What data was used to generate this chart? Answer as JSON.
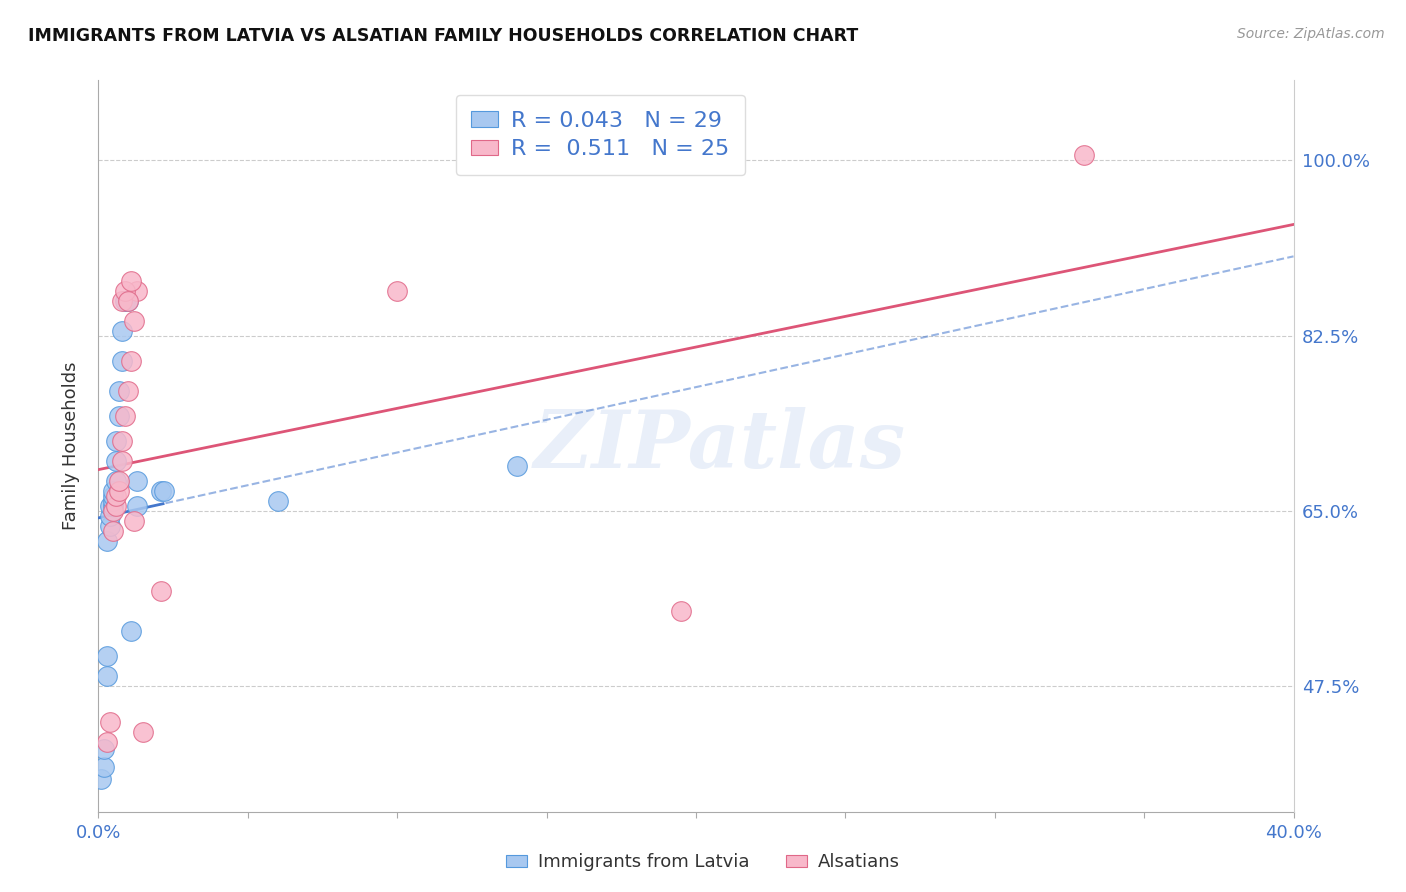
{
  "title": "IMMIGRANTS FROM LATVIA VS ALSATIAN FAMILY HOUSEHOLDS CORRELATION CHART",
  "source": "Source: ZipAtlas.com",
  "ylabel": "Family Households",
  "xlim": [
    0.0,
    0.4
  ],
  "ylim": [
    0.35,
    1.08
  ],
  "ytick_vals": [
    0.475,
    0.65,
    0.825,
    1.0
  ],
  "ytick_labels": [
    "47.5%",
    "65.0%",
    "82.5%",
    "100.0%"
  ],
  "legend_blue_r": "0.043",
  "legend_blue_n": "29",
  "legend_pink_r": "0.511",
  "legend_pink_n": "25",
  "legend_label_blue": "Immigrants from Latvia",
  "legend_label_pink": "Alsatians",
  "blue_face": "#A8C8F0",
  "blue_edge": "#5599DD",
  "pink_face": "#F8B8CA",
  "pink_edge": "#E06888",
  "blue_line": "#4477CC",
  "pink_line": "#DD5577",
  "watermark": "ZIPatlas",
  "blue_x": [
    0.001,
    0.002,
    0.002,
    0.003,
    0.003,
    0.003,
    0.004,
    0.004,
    0.004,
    0.005,
    0.005,
    0.005,
    0.005,
    0.006,
    0.006,
    0.006,
    0.007,
    0.007,
    0.008,
    0.008,
    0.009,
    0.01,
    0.011,
    0.013,
    0.021,
    0.013,
    0.022,
    0.06,
    0.14
  ],
  "blue_y": [
    0.383,
    0.395,
    0.413,
    0.485,
    0.505,
    0.62,
    0.635,
    0.645,
    0.655,
    0.655,
    0.66,
    0.665,
    0.67,
    0.68,
    0.7,
    0.72,
    0.745,
    0.77,
    0.8,
    0.83,
    0.86,
    0.86,
    0.53,
    0.68,
    0.67,
    0.655,
    0.67,
    0.66,
    0.695
  ],
  "pink_x": [
    0.003,
    0.004,
    0.005,
    0.005,
    0.006,
    0.006,
    0.007,
    0.007,
    0.008,
    0.008,
    0.009,
    0.01,
    0.011,
    0.012,
    0.013,
    0.021,
    0.008,
    0.009,
    0.01,
    0.011,
    0.012,
    0.1,
    0.195,
    0.33,
    0.015
  ],
  "pink_y": [
    0.42,
    0.44,
    0.63,
    0.65,
    0.655,
    0.665,
    0.67,
    0.68,
    0.7,
    0.72,
    0.745,
    0.77,
    0.8,
    0.84,
    0.87,
    0.57,
    0.86,
    0.87,
    0.86,
    0.88,
    0.64,
    0.87,
    0.55,
    1.005,
    0.43
  ]
}
